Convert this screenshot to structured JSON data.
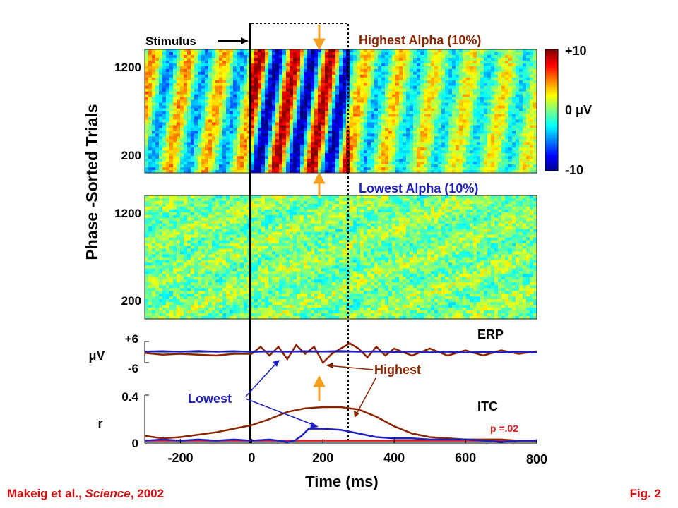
{
  "figure": {
    "ylabel": "Phase -Sorted Trials",
    "xlabel": "Time (ms)",
    "stimulus_label": "Stimulus",
    "citation_authors": "Makeig et al., ",
    "citation_journal": "Science",
    "citation_year": ", 2002",
    "fig_label": "Fig. 2"
  },
  "colors": {
    "highest": "#8B2500",
    "lowest": "#2020C0",
    "threshold": "#E02020",
    "arrow": "#F5A020",
    "citation": "#D01010",
    "text": "#000000"
  },
  "colorbar": {
    "max_label": "+10",
    "mid_label": "0 μV",
    "min_label": "-10",
    "range": [
      -10,
      10
    ]
  },
  "chart_data": [
    {
      "type": "heatmap",
      "title": "Highest Alpha (10%)",
      "x_range": [
        -300,
        800
      ],
      "y_ticks": [
        "1200",
        "200"
      ],
      "colormap": "jet",
      "value_range_uV": [
        -10,
        10
      ]
    },
    {
      "type": "heatmap",
      "title": "Lowest  Alpha (10%)",
      "x_range": [
        -300,
        800
      ],
      "y_ticks": [
        "1200",
        "200"
      ],
      "colormap": "jet",
      "value_range_uV": [
        -10,
        10
      ]
    },
    {
      "type": "line",
      "title": "ERP",
      "ylabel": "μV",
      "yticks": [
        "+6",
        "-6"
      ],
      "ylim": [
        -6,
        6
      ],
      "xlim": [
        -300,
        800
      ],
      "series": [
        {
          "name": "Highest",
          "x": [
            -300,
            -250,
            -200,
            -150,
            -100,
            -50,
            0,
            25,
            50,
            75,
            100,
            125,
            150,
            175,
            200,
            225,
            250,
            275,
            300,
            325,
            350,
            375,
            400,
            450,
            500,
            550,
            600,
            650,
            700,
            750,
            800
          ],
          "y": [
            -0.5,
            -1.5,
            -1,
            -1.5,
            -2,
            -1,
            -1,
            3,
            -2,
            3,
            -4,
            4,
            -1,
            3,
            -6,
            -1,
            2,
            5,
            2,
            -3,
            3,
            -2,
            2,
            -2,
            2,
            -2,
            1,
            -2,
            1,
            -1,
            0.5
          ]
        },
        {
          "name": "Lowest",
          "x": [
            -300,
            -250,
            -200,
            -150,
            -100,
            -50,
            0,
            50,
            100,
            150,
            200,
            250,
            300,
            350,
            400,
            450,
            500,
            550,
            600,
            650,
            700,
            750,
            800
          ],
          "y": [
            0.3,
            0.5,
            0.2,
            0.6,
            0.2,
            0.5,
            0.1,
            0.4,
            0.2,
            0.5,
            0.3,
            0.6,
            0.2,
            0.4,
            0,
            0.3,
            -0.2,
            0.2,
            -0.3,
            0.1,
            -0.2,
            0.2,
            -0.1
          ]
        }
      ]
    },
    {
      "type": "line",
      "title": "ITC",
      "ylabel": "r",
      "yticks": [
        "0.4",
        "0"
      ],
      "ylim": [
        0,
        0.4
      ],
      "xlim": [
        -300,
        800
      ],
      "xticks": [
        "-200",
        "0",
        "200",
        "400",
        "600",
        "800"
      ],
      "threshold": {
        "label": "p =.02",
        "value": 0.02
      },
      "series": [
        {
          "name": "Highest",
          "x": [
            -300,
            -250,
            -200,
            -150,
            -100,
            -50,
            0,
            50,
            100,
            150,
            200,
            250,
            300,
            350,
            400,
            450,
            500,
            550,
            600,
            650,
            700,
            750,
            800
          ],
          "y": [
            0.06,
            0.04,
            0.05,
            0.07,
            0.09,
            0.12,
            0.15,
            0.2,
            0.26,
            0.29,
            0.3,
            0.3,
            0.28,
            0.22,
            0.14,
            0.08,
            0.05,
            0.04,
            0.03,
            0.03,
            0.03,
            0.02,
            0.02
          ]
        },
        {
          "name": "Lowest",
          "x": [
            -300,
            -250,
            -200,
            -150,
            -100,
            -50,
            0,
            50,
            100,
            120,
            140,
            160,
            200,
            250,
            300,
            350,
            400,
            450,
            500,
            550,
            600,
            650,
            700,
            750,
            800
          ],
          "y": [
            0.02,
            0.03,
            0.02,
            0.03,
            0.02,
            0.03,
            0.02,
            0.03,
            0.01,
            0.02,
            0.06,
            0.12,
            0.12,
            0.11,
            0.08,
            0.05,
            0.04,
            0.04,
            0.03,
            0.03,
            0.03,
            0.02,
            0.01,
            0.02,
            0.02
          ]
        }
      ]
    }
  ],
  "annotations": {
    "erp_series_label": "Highest",
    "itc_series_label": "Lowest"
  }
}
